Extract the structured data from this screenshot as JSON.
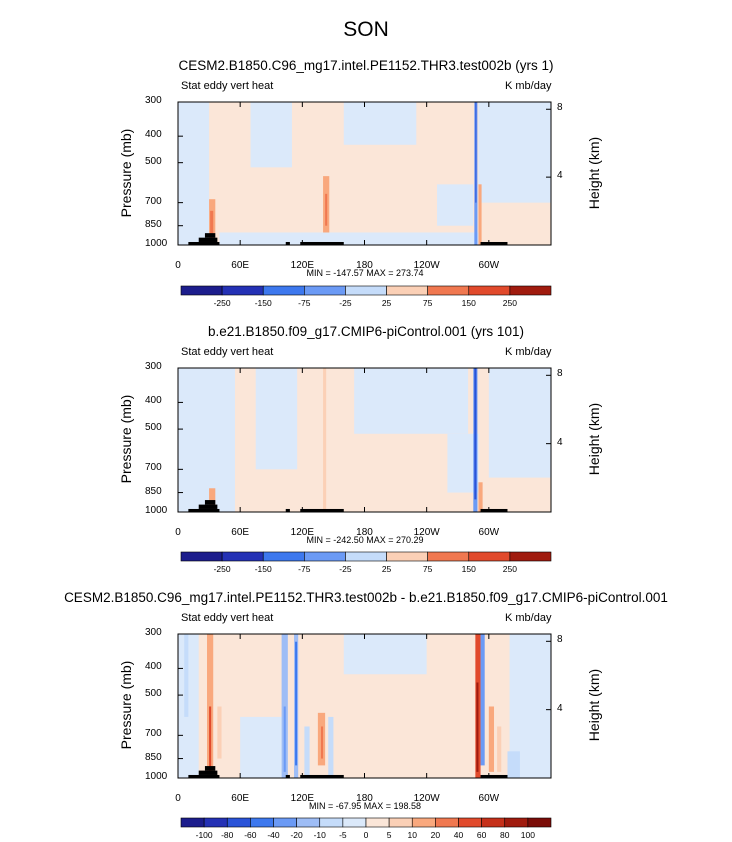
{
  "page": {
    "title": "SON"
  },
  "colors": {
    "neg": [
      "#1c1d8c",
      "#2431b5",
      "#2a53d8",
      "#3d78ee",
      "#6b9af5",
      "#9ebdf6",
      "#c5dcfa",
      "#dbe9fa"
    ],
    "pos": [
      "#fbe6d8",
      "#fbd0b6",
      "#f9a87d",
      "#f07850",
      "#e14a2c",
      "#c5301a",
      "#a01b0e",
      "#7a0c08"
    ],
    "land": "#000000"
  },
  "chart_data": [
    {
      "type": "heatmap",
      "title": "CESM2.B1850.C96_mg17.intel.PE1152.THR3.test002b (yrs 1)",
      "left_label": "Stat eddy vert heat",
      "right_label": "K mb/day",
      "ylabel": "Pressure (mb)",
      "ylabel_right": "Height (km)",
      "x_ticks": [
        "0",
        "60E",
        "120E",
        "180",
        "120W",
        "60W"
      ],
      "x_tick_lon": [
        0,
        60,
        120,
        180,
        240,
        300
      ],
      "xlim": [
        0,
        360
      ],
      "y_ticks": [
        "300",
        "400",
        "500",
        "700",
        "850",
        "1000"
      ],
      "y_tick_p": [
        300,
        400,
        500,
        700,
        850,
        1000
      ],
      "ylim": [
        1000,
        300
      ],
      "height_ticks": [
        "8",
        "4"
      ],
      "height_km": [
        8,
        4
      ],
      "min": -147.57,
      "max": 273.74,
      "minmax_text": "MIN = -147.57  MAX = 273.74",
      "colorbar_levels": [
        "-250",
        "-150",
        "-75",
        "-25",
        "25",
        "75",
        "150",
        "250"
      ],
      "background": "#fbe6d8",
      "patches": [
        {
          "lon": [
            0,
            30
          ],
          "p": [
            300,
            1000
          ],
          "lvl": -1
        },
        {
          "lon": [
            70,
            110
          ],
          "p": [
            300,
            520
          ],
          "lvl": -1
        },
        {
          "lon": [
            160,
            230
          ],
          "p": [
            300,
            430
          ],
          "lvl": -1
        },
        {
          "lon": [
            290,
            360
          ],
          "p": [
            300,
            700
          ],
          "lvl": -1
        },
        {
          "lon": [
            40,
            290
          ],
          "p": [
            900,
            1000
          ],
          "lvl": -1
        },
        {
          "lon": [
            250,
            285
          ],
          "p": [
            600,
            850
          ],
          "lvl": -1
        },
        {
          "lon": [
            30,
            36
          ],
          "p": [
            680,
            1000
          ],
          "lvl": 3
        },
        {
          "lon": [
            31,
            34
          ],
          "p": [
            750,
            950
          ],
          "lvl": 4
        },
        {
          "lon": [
            140,
            146
          ],
          "p": [
            560,
            900
          ],
          "lvl": 3
        },
        {
          "lon": [
            142,
            144
          ],
          "p": [
            650,
            850
          ],
          "lvl": 4
        },
        {
          "lon": [
            290,
            293
          ],
          "p": [
            600,
            1000
          ],
          "lvl": 3
        },
        {
          "lon": [
            286,
            289
          ],
          "p": [
            300,
            1000
          ],
          "lvl": -4
        },
        {
          "lon": [
            287,
            288
          ],
          "p": [
            300,
            700
          ],
          "lvl": -6
        }
      ],
      "land": [
        {
          "lon": [
            10,
            40
          ],
          "p": [
            975,
            1000
          ]
        },
        {
          "lon": [
            20,
            38
          ],
          "p": [
            940,
            975
          ]
        },
        {
          "lon": [
            26,
            36
          ],
          "p": [
            905,
            940
          ]
        },
        {
          "lon": [
            104,
            108
          ],
          "p": [
            975,
            1000
          ]
        },
        {
          "lon": [
            118,
            160
          ],
          "p": [
            975,
            1000
          ]
        },
        {
          "lon": [
            292,
            318
          ],
          "p": [
            975,
            1000
          ]
        }
      ]
    },
    {
      "type": "heatmap",
      "title": "b.e21.B1850.f09_g17.CMIP6-piControl.001 (yrs 101)",
      "left_label": "Stat eddy vert heat",
      "right_label": "K mb/day",
      "ylabel": "Pressure (mb)",
      "ylabel_right": "Height (km)",
      "x_ticks": [
        "0",
        "60E",
        "120E",
        "180",
        "120W",
        "60W"
      ],
      "x_tick_lon": [
        0,
        60,
        120,
        180,
        240,
        300
      ],
      "xlim": [
        0,
        360
      ],
      "y_ticks": [
        "300",
        "400",
        "500",
        "700",
        "850",
        "1000"
      ],
      "y_tick_p": [
        300,
        400,
        500,
        700,
        850,
        1000
      ],
      "ylim": [
        1000,
        300
      ],
      "height_ticks": [
        "8",
        "4"
      ],
      "height_km": [
        8,
        4
      ],
      "min": -242.5,
      "max": 270.29,
      "minmax_text": "MIN = -242.50  MAX = 270.29",
      "colorbar_levels": [
        "-250",
        "-150",
        "-75",
        "-25",
        "25",
        "75",
        "150",
        "250"
      ],
      "background": "#fbe6d8",
      "patches": [
        {
          "lon": [
            0,
            55
          ],
          "p": [
            300,
            1000
          ],
          "lvl": -1
        },
        {
          "lon": [
            75,
            115
          ],
          "p": [
            300,
            700
          ],
          "lvl": -1
        },
        {
          "lon": [
            170,
            280
          ],
          "p": [
            300,
            520
          ],
          "lvl": -1
        },
        {
          "lon": [
            260,
            290
          ],
          "p": [
            520,
            850
          ],
          "lvl": -1
        },
        {
          "lon": [
            300,
            360
          ],
          "p": [
            300,
            750
          ],
          "lvl": -1
        },
        {
          "lon": [
            30,
            36
          ],
          "p": [
            820,
            1000
          ],
          "lvl": 3
        },
        {
          "lon": [
            120,
            124
          ],
          "p": [
            300,
            1000
          ],
          "lvl": 1
        },
        {
          "lon": [
            140,
            143
          ],
          "p": [
            300,
            1000
          ],
          "lvl": 2
        },
        {
          "lon": [
            290,
            294
          ],
          "p": [
            780,
            1000
          ],
          "lvl": 3
        },
        {
          "lon": [
            285,
            289
          ],
          "p": [
            300,
            1000
          ],
          "lvl": -4
        },
        {
          "lon": [
            286,
            288
          ],
          "p": [
            300,
            900
          ],
          "lvl": -6
        }
      ],
      "land": [
        {
          "lon": [
            10,
            40
          ],
          "p": [
            975,
            1000
          ]
        },
        {
          "lon": [
            20,
            38
          ],
          "p": [
            940,
            975
          ]
        },
        {
          "lon": [
            26,
            36
          ],
          "p": [
            905,
            940
          ]
        },
        {
          "lon": [
            104,
            108
          ],
          "p": [
            975,
            1000
          ]
        },
        {
          "lon": [
            118,
            160
          ],
          "p": [
            975,
            1000
          ]
        },
        {
          "lon": [
            292,
            318
          ],
          "p": [
            975,
            1000
          ]
        }
      ]
    },
    {
      "type": "heatmap",
      "title": "CESM2.B1850.C96_mg17.intel.PE1152.THR3.test002b - b.e21.B1850.f09_g17.CMIP6-piControl.001",
      "left_label": "Stat eddy vert heat",
      "right_label": "K mb/day",
      "ylabel": "Pressure (mb)",
      "ylabel_right": "Height (km)",
      "x_ticks": [
        "0",
        "60E",
        "120E",
        "180",
        "120W",
        "60W"
      ],
      "x_tick_lon": [
        0,
        60,
        120,
        180,
        240,
        300
      ],
      "xlim": [
        0,
        360
      ],
      "y_ticks": [
        "300",
        "400",
        "500",
        "700",
        "850",
        "1000"
      ],
      "y_tick_p": [
        300,
        400,
        500,
        700,
        850,
        1000
      ],
      "ylim": [
        1000,
        300
      ],
      "height_ticks": [
        "8",
        "4"
      ],
      "height_km": [
        8,
        4
      ],
      "min": -67.95,
      "max": 198.58,
      "minmax_text": "MIN = -67.95  MAX = 198.58",
      "colorbar_levels": [
        "-100",
        "-80",
        "-60",
        "-40",
        "-20",
        "-10",
        "-5",
        "0",
        "5",
        "10",
        "20",
        "40",
        "60",
        "80",
        "100"
      ],
      "background": "#fbe6d8",
      "patches": [
        {
          "lon": [
            0,
            20
          ],
          "p": [
            300,
            1000
          ],
          "lvl": -1
        },
        {
          "lon": [
            60,
            100
          ],
          "p": [
            600,
            1000
          ],
          "lvl": -1
        },
        {
          "lon": [
            160,
            240
          ],
          "p": [
            300,
            420
          ],
          "lvl": -1
        },
        {
          "lon": [
            320,
            360
          ],
          "p": [
            300,
            1000
          ],
          "lvl": -1
        },
        {
          "lon": [
            6,
            10
          ],
          "p": [
            300,
            600
          ],
          "lvl": -2
        },
        {
          "lon": [
            28,
            34
          ],
          "p": [
            300,
            1000
          ],
          "lvl": 3
        },
        {
          "lon": [
            30,
            32
          ],
          "p": [
            550,
            950
          ],
          "lvl": 5
        },
        {
          "lon": [
            38,
            42
          ],
          "p": [
            550,
            850
          ],
          "lvl": 2
        },
        {
          "lon": [
            100,
            106
          ],
          "p": [
            300,
            1000
          ],
          "lvl": -3
        },
        {
          "lon": [
            102,
            104
          ],
          "p": [
            550,
            950
          ],
          "lvl": -4
        },
        {
          "lon": [
            112,
            116
          ],
          "p": [
            300,
            1000
          ],
          "lvl": -3
        },
        {
          "lon": [
            113,
            115
          ],
          "p": [
            320,
            900
          ],
          "lvl": -5
        },
        {
          "lon": [
            122,
            127
          ],
          "p": [
            650,
            1000
          ],
          "lvl": -2
        },
        {
          "lon": [
            135,
            142
          ],
          "p": [
            580,
            900
          ],
          "lvl": 3
        },
        {
          "lon": [
            138,
            140
          ],
          "p": [
            650,
            850
          ],
          "lvl": 4
        },
        {
          "lon": [
            145,
            150
          ],
          "p": [
            600,
            1000
          ],
          "lvl": -2
        },
        {
          "lon": [
            287,
            292
          ],
          "p": [
            300,
            1000
          ],
          "lvl": 5
        },
        {
          "lon": [
            288,
            290
          ],
          "p": [
            450,
            950
          ],
          "lvl": 7
        },
        {
          "lon": [
            292,
            296
          ],
          "p": [
            300,
            900
          ],
          "lvl": -4
        },
        {
          "lon": [
            300,
            305
          ],
          "p": [
            550,
            950
          ],
          "lvl": 3
        },
        {
          "lon": [
            308,
            312
          ],
          "p": [
            650,
            950
          ],
          "lvl": 2
        },
        {
          "lon": [
            318,
            330
          ],
          "p": [
            800,
            1000
          ],
          "lvl": -2
        }
      ],
      "land": [
        {
          "lon": [
            10,
            40
          ],
          "p": [
            975,
            1000
          ]
        },
        {
          "lon": [
            20,
            38
          ],
          "p": [
            940,
            975
          ]
        },
        {
          "lon": [
            26,
            36
          ],
          "p": [
            905,
            940
          ]
        },
        {
          "lon": [
            104,
            108
          ],
          "p": [
            975,
            1000
          ]
        },
        {
          "lon": [
            118,
            160
          ],
          "p": [
            975,
            1000
          ]
        },
        {
          "lon": [
            292,
            318
          ],
          "p": [
            975,
            1000
          ]
        }
      ]
    }
  ]
}
